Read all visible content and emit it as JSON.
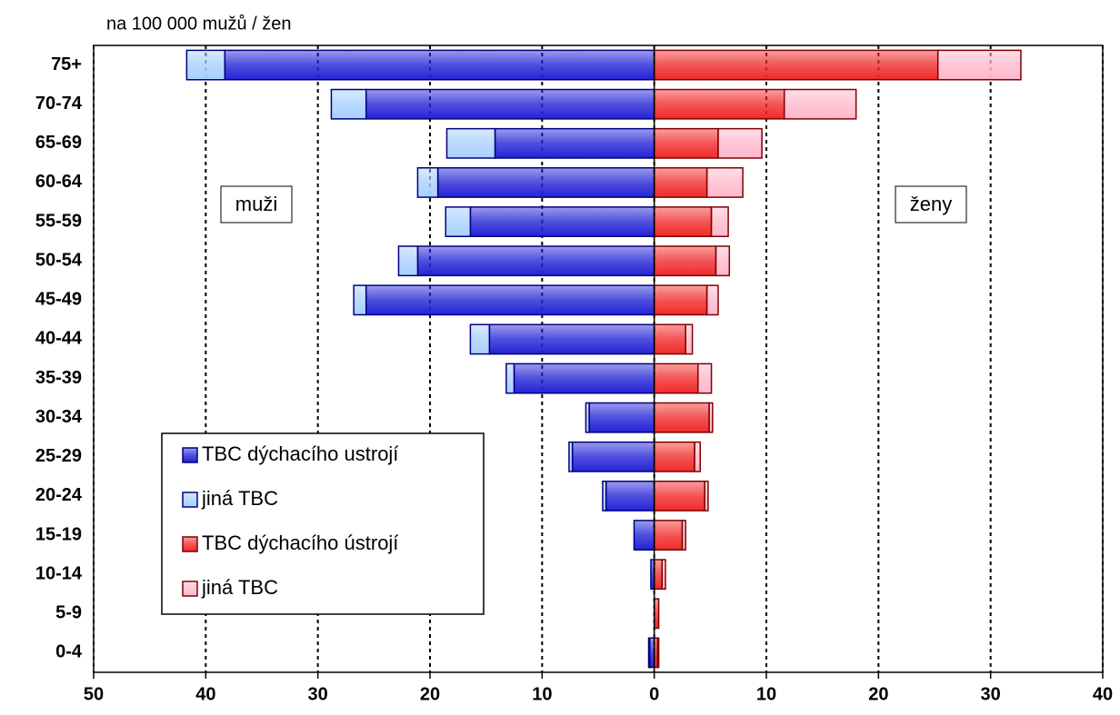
{
  "chart_data": {
    "type": "pyramid",
    "subtitle": "na 100 000 mužů / žen",
    "annotations": [
      "muži",
      "ženy"
    ],
    "categories": [
      "75+",
      "70-74",
      "65-69",
      "60-64",
      "55-59",
      "50-54",
      "45-49",
      "40-44",
      "35-39",
      "30-34",
      "25-29",
      "20-24",
      "15-19",
      "10-14",
      "5-9",
      "0-4"
    ],
    "series": [
      {
        "name": "TBC dýchacího ustrojí",
        "color": "#2323d6",
        "stroke": "#000080",
        "values": [
          -38.3,
          -25.7,
          -14.2,
          -19.3,
          -16.4,
          -21.1,
          -25.7,
          -14.7,
          -12.5,
          -5.8,
          -7.3,
          -4.3,
          -1.8,
          -0.3,
          0,
          -0.4
        ]
      },
      {
        "name": "jiná TBC",
        "color": "#a8d0ff",
        "stroke": "#000080",
        "values": [
          -3.4,
          -3.1,
          -4.3,
          -1.8,
          -2.2,
          -1.7,
          -1.1,
          -1.7,
          -0.7,
          -0.3,
          -0.3,
          -0.3,
          0,
          0,
          0,
          -0.1
        ]
      },
      {
        "name": "TBC dýchacího ústrojí",
        "color": "#f02a2a",
        "stroke": "#800000",
        "values": [
          25.3,
          11.6,
          5.7,
          4.7,
          5.1,
          5.5,
          4.7,
          2.8,
          3.9,
          4.9,
          3.6,
          4.5,
          2.5,
          0.7,
          0.4,
          0.3
        ]
      },
      {
        "name": "jiná TBC",
        "color": "#ffb8cc",
        "stroke": "#800000",
        "values": [
          7.4,
          6.4,
          3.9,
          3.2,
          1.5,
          1.2,
          1.0,
          0.6,
          1.2,
          0.3,
          0.5,
          0.3,
          0.3,
          0.3,
          0,
          0.1
        ]
      }
    ],
    "xlim": [
      -50,
      40
    ],
    "xticks": [
      {
        "value": -50,
        "label": "50"
      },
      {
        "value": -40,
        "label": "40"
      },
      {
        "value": -30,
        "label": "30"
      },
      {
        "value": -20,
        "label": "20"
      },
      {
        "value": -10,
        "label": "10"
      },
      0,
      10,
      20,
      30,
      40
    ],
    "grid": true,
    "legend": "lower-left"
  }
}
